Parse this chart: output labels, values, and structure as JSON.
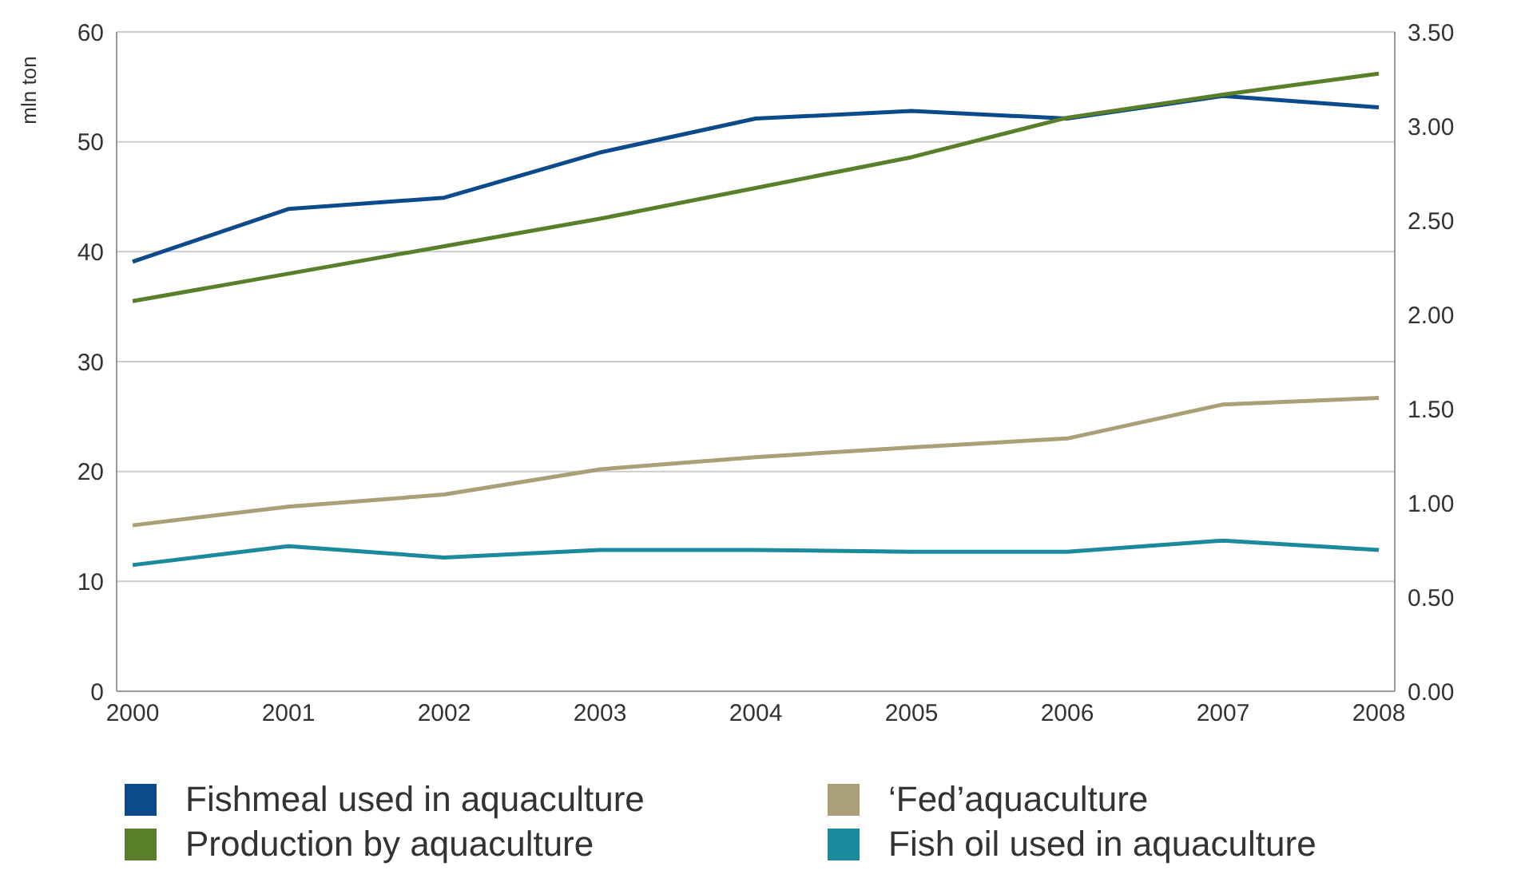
{
  "chart_data": {
    "type": "line",
    "ylabel": "mln ton",
    "categories": [
      "2000",
      "2001",
      "2002",
      "2003",
      "2004",
      "2005",
      "2006",
      "2007",
      "2008"
    ],
    "series": [
      {
        "name": "Fishmeal used in aquaculture",
        "color": "#0d4a8c",
        "axis": "y2",
        "values": [
          2.28,
          2.56,
          2.62,
          2.86,
          3.04,
          3.08,
          3.04,
          3.16,
          3.1
        ]
      },
      {
        "name": "Production by aquaculture",
        "color": "#5a7f2a",
        "values": [
          35.5,
          38,
          40.5,
          43,
          45.8,
          48.6,
          52.2,
          54.3,
          56.2
        ]
      },
      {
        "name": "‘Fed’aquaculture",
        "color": "#ab9f78",
        "values": [
          15.1,
          16.8,
          17.9,
          20.2,
          21.3,
          22.2,
          23,
          26.1,
          26.7
        ]
      },
      {
        "name": "Fish oil used in aquaculture",
        "color": "#1a8a9c",
        "axis": "y2",
        "values": [
          0.67,
          0.77,
          0.71,
          0.75,
          0.75,
          0.74,
          0.74,
          0.8,
          0.75
        ]
      }
    ],
    "ylim": [
      0,
      60
    ],
    "yticks": [
      0,
      10,
      20,
      30,
      40,
      50,
      60
    ],
    "y2lim": [
      0,
      3.5
    ],
    "y2ticks": [
      {
        "value": 0,
        "label": "0.00"
      },
      {
        "value": 0.5,
        "label": "0.50"
      },
      {
        "value": 1,
        "label": "1.00"
      },
      {
        "value": 1.5,
        "label": "1.50"
      },
      {
        "value": 2,
        "label": "2.00"
      },
      {
        "value": 2.5,
        "label": "2.50"
      },
      {
        "value": 3,
        "label": "3.00"
      },
      {
        "value": 3.5,
        "label": "3.50"
      }
    ],
    "grid": "y",
    "legend": "bottom",
    "marker": "none",
    "line_style": "solid"
  }
}
